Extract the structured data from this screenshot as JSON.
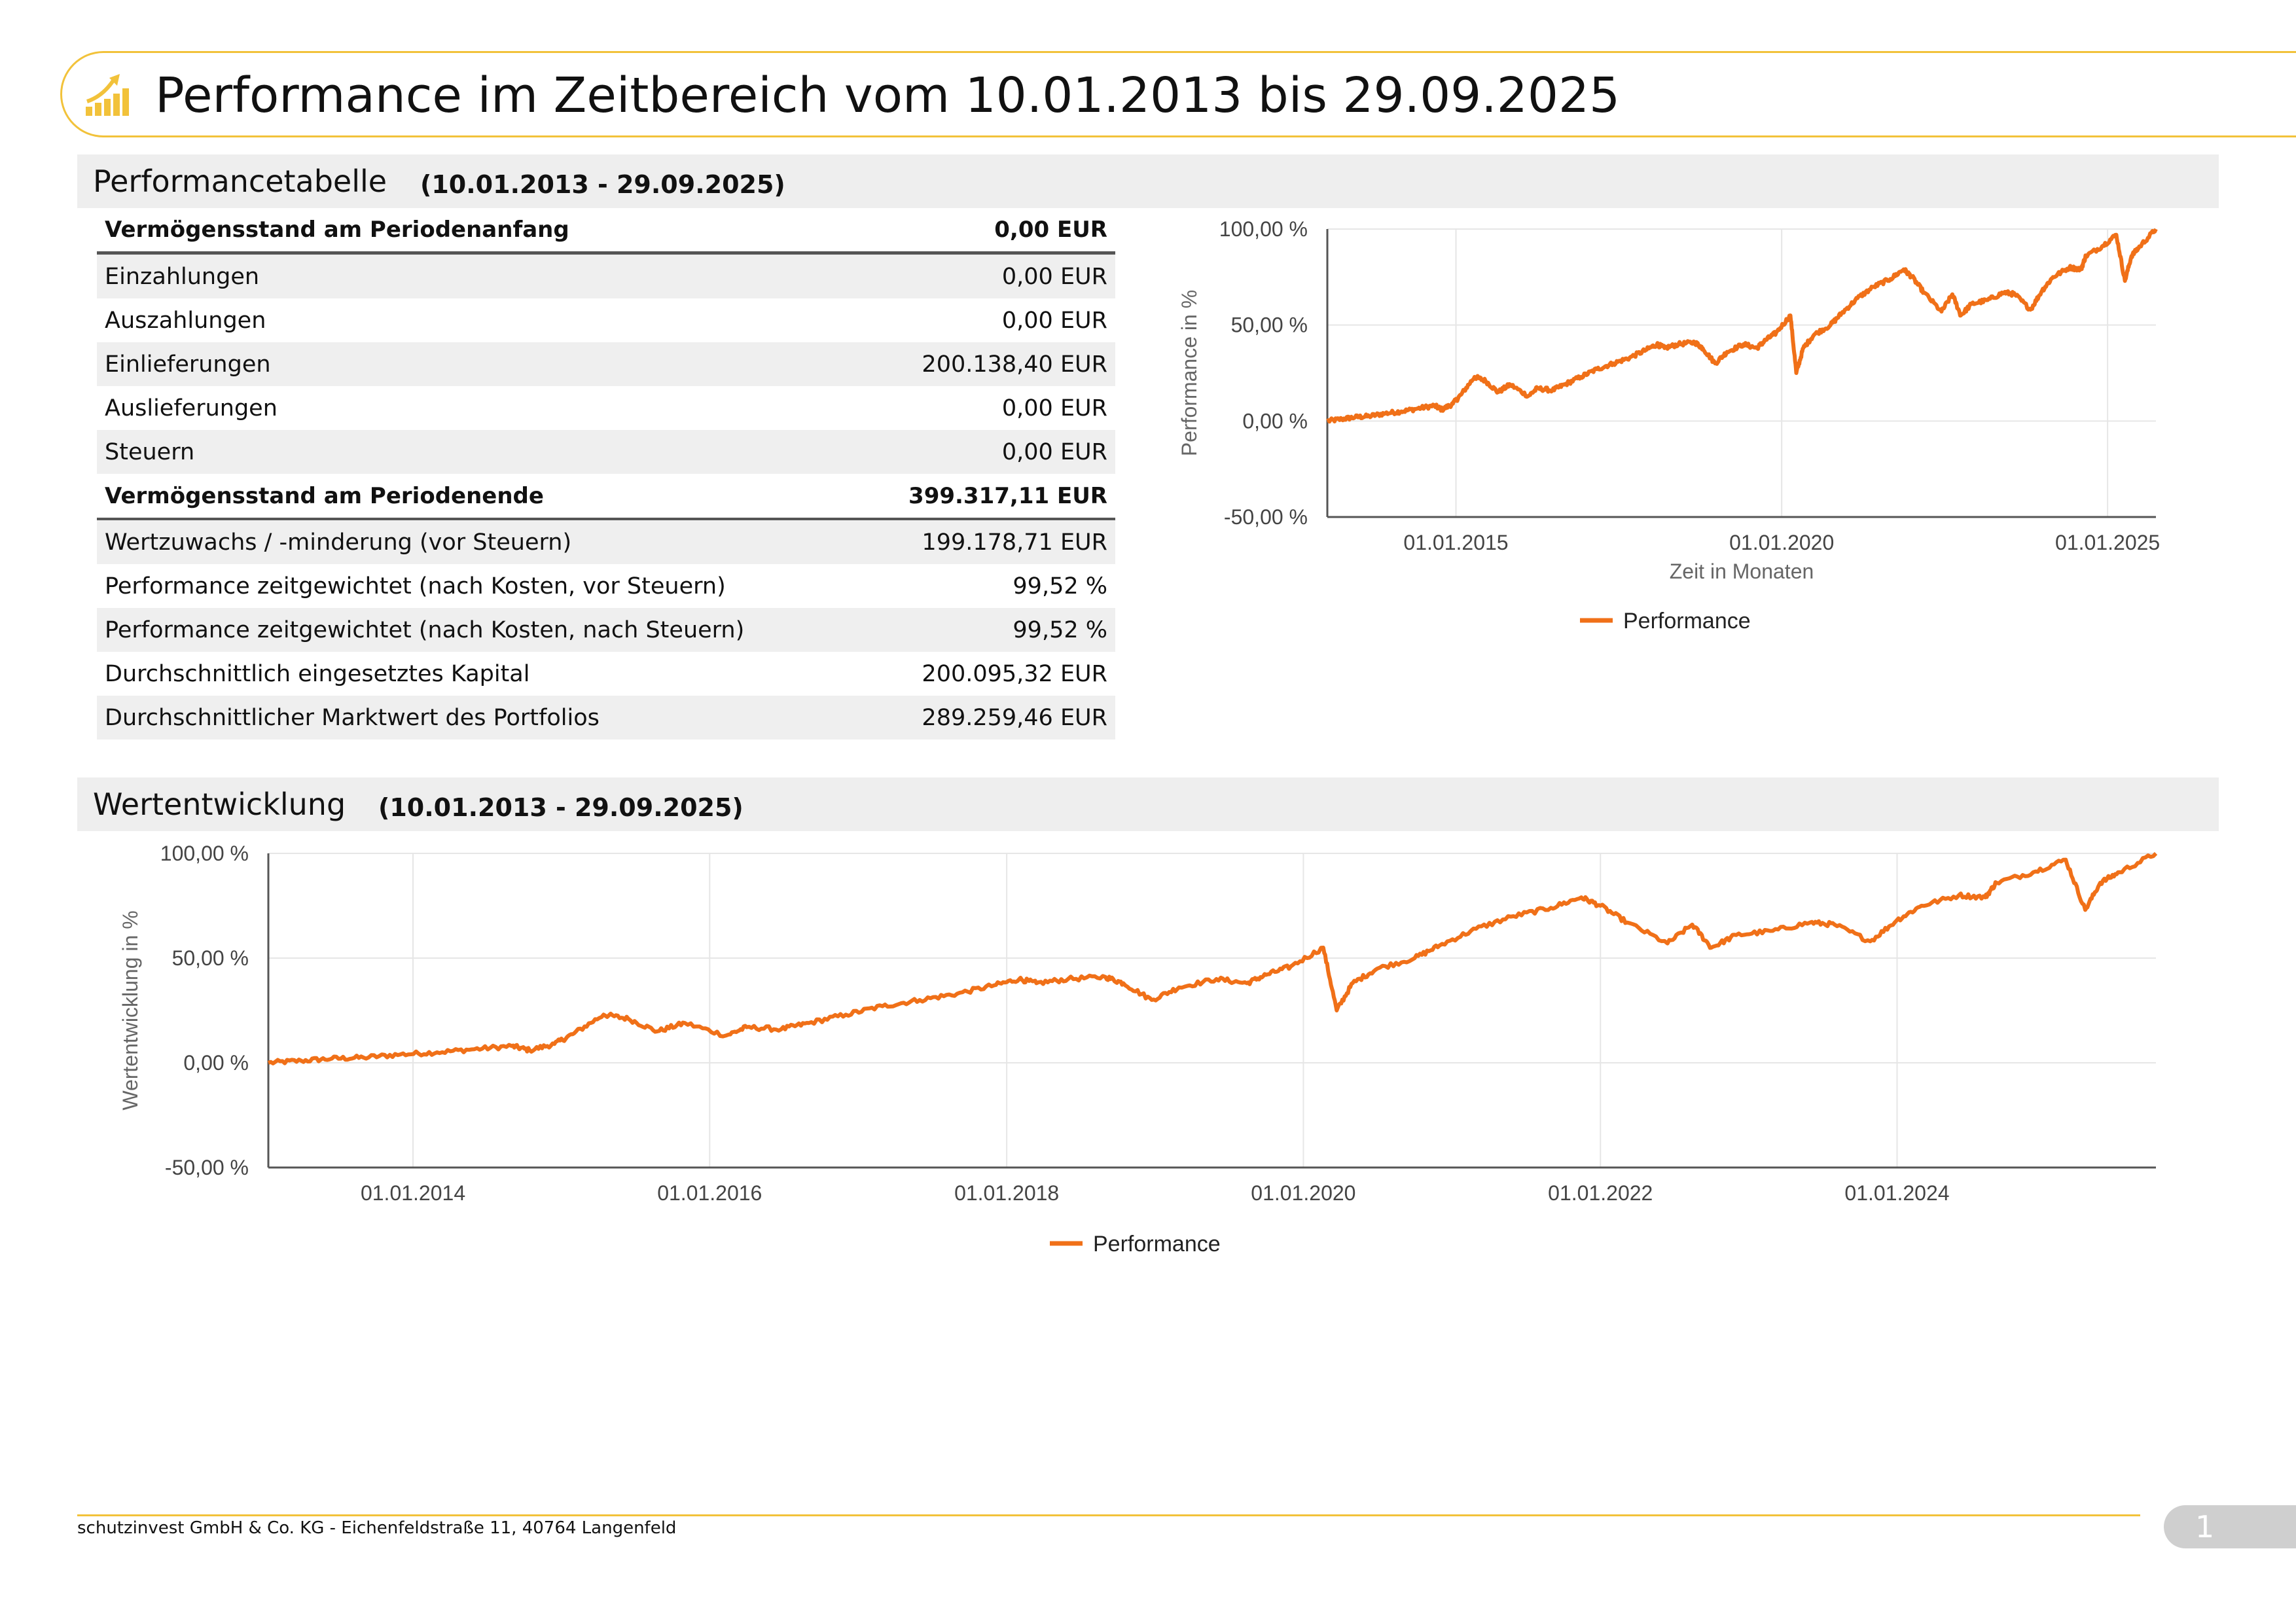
{
  "header": {
    "title": "Performance im Zeitbereich vom 10.01.2013 bis 29.09.2025",
    "icon": "growth-chart-icon"
  },
  "colors": {
    "accent": "#f2c23a",
    "series": "#f07018",
    "shade": "#efefef"
  },
  "sections": {
    "table": {
      "title": "Performancetabelle",
      "range": "(10.01.2013 - 29.09.2025)"
    },
    "development": {
      "title": "Wertentwicklung",
      "range": "(10.01.2013 - 29.09.2025)"
    }
  },
  "table": {
    "rows": [
      {
        "label": "Vermögensstand am Periodenanfang",
        "value": "0,00 EUR"
      },
      {
        "label": "Einzahlungen",
        "value": "0,00 EUR"
      },
      {
        "label": "Auszahlungen",
        "value": "0,00 EUR"
      },
      {
        "label": "Einlieferungen",
        "value": "200.138,40 EUR"
      },
      {
        "label": "Auslieferungen",
        "value": "0,00 EUR"
      },
      {
        "label": "Steuern",
        "value": "0,00 EUR"
      },
      {
        "label": "Vermögensstand am Periodenende",
        "value": "399.317,11 EUR"
      },
      {
        "label": "Wertzuwachs / -minderung (vor Steuern)",
        "value": "199.178,71 EUR"
      },
      {
        "label": "Performance zeitgewichtet (nach Kosten, vor Steuern)",
        "value": "99,52 %"
      },
      {
        "label": "Performance zeitgewichtet (nach Kosten, nach Steuern)",
        "value": "99,52 %"
      },
      {
        "label": "Durchschnittlich eingesetztes Kapital",
        "value": "200.095,32 EUR"
      },
      {
        "label": "Durchschnittlicher Marktwert des Portfolios",
        "value": "289.259,46 EUR"
      }
    ]
  },
  "chart_data": [
    {
      "type": "line",
      "ylabel": "Performance in %",
      "xlabel": "Zeit in Monaten",
      "xlim": [
        "2013-01-10",
        "2025-09-29"
      ],
      "ylim": [
        -50,
        100
      ],
      "y_ticks": [
        100,
        50,
        0,
        -50
      ],
      "y_tick_labels": [
        "100,00 %",
        "50,00 %",
        "0,00 %",
        "-50,00 %"
      ],
      "x_ticks": [
        "2015-01-01",
        "2020-01-01",
        "2025-01-01"
      ],
      "x_tick_labels": [
        "01.01.2015",
        "01.01.2020",
        "01.01.2025"
      ],
      "grid": true,
      "legend_position": "bottom",
      "series": [
        {
          "name": "Performance",
          "color": "#f07018"
        }
      ]
    },
    {
      "type": "line",
      "ylabel": "Wertentwicklung in %",
      "xlabel": "",
      "xlim": [
        "2013-01-10",
        "2025-09-29"
      ],
      "ylim": [
        -50,
        100
      ],
      "y_ticks": [
        100,
        50,
        0,
        -50
      ],
      "y_tick_labels": [
        "100,00 %",
        "50,00 %",
        "0,00 %",
        "-50,00 %"
      ],
      "x_ticks": [
        "2014-01-01",
        "2016-01-01",
        "2018-01-01",
        "2020-01-01",
        "2022-01-01",
        "2024-01-01"
      ],
      "x_tick_labels": [
        "01.01.2014",
        "01.01.2016",
        "01.01.2018",
        "01.01.2020",
        "01.01.2022",
        "01.01.2024"
      ],
      "grid": true,
      "legend_position": "bottom",
      "series": [
        {
          "name": "Performance",
          "color": "#f07018"
        }
      ]
    }
  ],
  "series_points": [
    [
      "2013-01-10",
      0
    ],
    [
      "2013-04-01",
      1
    ],
    [
      "2013-06-15",
      2
    ],
    [
      "2013-09-01",
      2.5
    ],
    [
      "2013-12-01",
      4
    ],
    [
      "2014-03-01",
      5
    ],
    [
      "2014-06-01",
      6.5
    ],
    [
      "2014-09-01",
      8
    ],
    [
      "2014-10-15",
      6
    ],
    [
      "2014-12-15",
      9
    ],
    [
      "2015-02-01",
      14
    ],
    [
      "2015-04-15",
      23
    ],
    [
      "2015-06-15",
      21
    ],
    [
      "2015-08-25",
      15
    ],
    [
      "2015-11-01",
      19
    ],
    [
      "2016-02-10",
      13
    ],
    [
      "2016-04-01",
      17
    ],
    [
      "2016-06-25",
      16
    ],
    [
      "2016-09-01",
      19
    ],
    [
      "2016-12-01",
      23
    ],
    [
      "2017-03-01",
      27
    ],
    [
      "2017-06-01",
      30
    ],
    [
      "2017-09-01",
      33
    ],
    [
      "2017-12-01",
      37
    ],
    [
      "2018-02-01",
      40
    ],
    [
      "2018-03-15",
      38
    ],
    [
      "2018-06-01",
      40
    ],
    [
      "2018-09-01",
      41
    ],
    [
      "2018-10-15",
      38
    ],
    [
      "2018-12-24",
      30
    ],
    [
      "2019-03-01",
      36
    ],
    [
      "2019-06-01",
      40
    ],
    [
      "2019-08-15",
      38
    ],
    [
      "2019-10-01",
      42
    ],
    [
      "2019-12-01",
      46
    ],
    [
      "2020-02-19",
      55
    ],
    [
      "2020-03-23",
      25
    ],
    [
      "2020-05-01",
      38
    ],
    [
      "2020-07-01",
      45
    ],
    [
      "2020-10-01",
      50
    ],
    [
      "2020-12-01",
      56
    ],
    [
      "2021-03-01",
      64
    ],
    [
      "2021-06-01",
      70
    ],
    [
      "2021-09-01",
      74
    ],
    [
      "2021-11-15",
      79
    ],
    [
      "2022-01-01",
      75
    ],
    [
      "2022-03-08",
      67
    ],
    [
      "2022-06-15",
      57
    ],
    [
      "2022-08-15",
      66
    ],
    [
      "2022-10-01",
      55
    ],
    [
      "2022-12-01",
      61
    ],
    [
      "2023-03-01",
      63
    ],
    [
      "2023-06-01",
      67
    ],
    [
      "2023-07-31",
      66
    ],
    [
      "2023-10-27",
      58
    ],
    [
      "2023-12-31",
      68
    ],
    [
      "2024-03-01",
      75
    ],
    [
      "2024-06-01",
      80
    ],
    [
      "2024-08-05",
      79
    ],
    [
      "2024-09-01",
      86
    ],
    [
      "2024-12-01",
      91
    ],
    [
      "2025-02-19",
      97
    ],
    [
      "2025-04-08",
      73
    ],
    [
      "2025-05-15",
      86
    ],
    [
      "2025-07-01",
      91
    ],
    [
      "2025-09-29",
      100
    ]
  ],
  "footer": {
    "company": "schutzinvest GmbH & Co. KG - Eichenfeldstraße 11, 40764 Langenfeld",
    "page_number": "1"
  }
}
